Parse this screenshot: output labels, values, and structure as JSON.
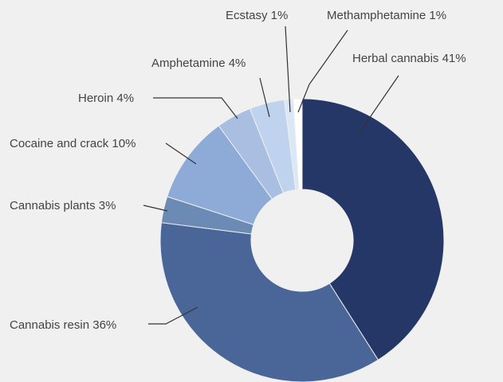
{
  "chart_data": {
    "type": "pie",
    "variant": "donut",
    "title": "",
    "legend": "none",
    "slices": [
      {
        "label": "Herbal cannabis 41%",
        "value": 41,
        "color": "#253766"
      },
      {
        "label": "Cannabis resin 36%",
        "value": 36,
        "color": "#4a6699"
      },
      {
        "label": "Cannabis plants 3%",
        "value": 3,
        "color": "#6b8bb5"
      },
      {
        "label": "Cocaine and crack 10%",
        "value": 10,
        "color": "#8eaad6"
      },
      {
        "label": "Heroin 4%",
        "value": 4,
        "color": "#a9bee0"
      },
      {
        "label": "Amphetamine 4%",
        "value": 4,
        "color": "#bfd2ee"
      },
      {
        "label": "Ecstasy 1%",
        "value": 1,
        "color": "#dbe6f6"
      },
      {
        "label": "Methamphetamine 1%",
        "value": 1,
        "color": "#ffffff"
      }
    ]
  }
}
